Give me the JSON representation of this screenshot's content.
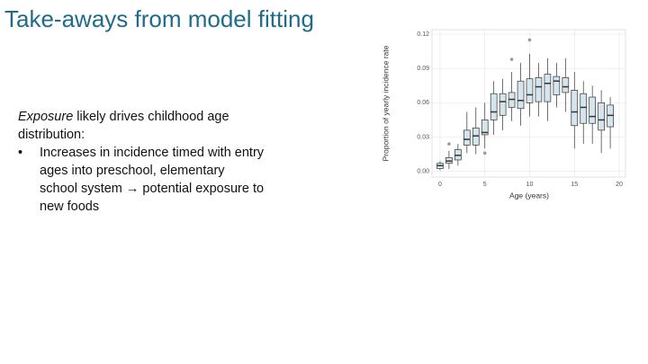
{
  "slide": {
    "title": "Take-aways from model fitting",
    "intro_emphasis": "Exposure",
    "intro_rest": " likely drives childhood age distribution:",
    "bullets": [
      "Increases in incidence timed with entry ages into preschool, elementary school system → potential exposure to new foods"
    ]
  },
  "chart_data": {
    "type": "box",
    "x_label": "Age (years)",
    "y_label": "Proportion of yearly incidence rate",
    "x": [
      0,
      1,
      2,
      3,
      4,
      5,
      6,
      7,
      8,
      9,
      10,
      11,
      12,
      13,
      14,
      15,
      16,
      17,
      18,
      19
    ],
    "min": [
      0.001,
      0.002,
      0.005,
      0.016,
      0.015,
      0.02,
      0.032,
      0.036,
      0.044,
      0.04,
      0.048,
      0.048,
      0.044,
      0.056,
      0.052,
      0.02,
      0.024,
      0.024,
      0.016,
      0.02
    ],
    "q1": [
      0.0025,
      0.007,
      0.01,
      0.023,
      0.023,
      0.032,
      0.045,
      0.049,
      0.056,
      0.055,
      0.06,
      0.061,
      0.061,
      0.067,
      0.069,
      0.04,
      0.042,
      0.042,
      0.036,
      0.039
    ],
    "median": [
      0.005,
      0.009,
      0.014,
      0.028,
      0.031,
      0.034,
      0.052,
      0.061,
      0.063,
      0.062,
      0.067,
      0.074,
      0.077,
      0.079,
      0.074,
      0.052,
      0.056,
      0.048,
      0.045,
      0.049
    ],
    "q3": [
      0.007,
      0.012,
      0.019,
      0.036,
      0.038,
      0.045,
      0.068,
      0.068,
      0.069,
      0.079,
      0.081,
      0.082,
      0.085,
      0.083,
      0.082,
      0.071,
      0.068,
      0.065,
      0.06,
      0.058
    ],
    "max": [
      0.009,
      0.018,
      0.024,
      0.052,
      0.056,
      0.06,
      0.079,
      0.081,
      0.087,
      0.095,
      0.103,
      0.095,
      0.099,
      0.095,
      0.099,
      0.087,
      0.079,
      0.075,
      0.071,
      0.065
    ],
    "outliers": {
      "x": [
        1,
        5,
        8,
        10
      ],
      "y": [
        0.024,
        0.016,
        0.098,
        0.115
      ]
    },
    "box_color": "#d4e5ee",
    "line_color": "#333333",
    "outlier_color": "#999999",
    "xlim": [
      -0.9,
      20.7
    ],
    "ylim": [
      -0.005,
      0.124
    ],
    "xticks": [
      0,
      5,
      10,
      15,
      20
    ],
    "yticks": [
      {
        "value": 0,
        "label": "0.00"
      },
      {
        "value": 0.03,
        "label": "0.03"
      },
      {
        "value": 0.06,
        "label": "0.06"
      },
      {
        "value": 0.09,
        "label": "0.09"
      },
      {
        "value": 0.12,
        "label": "0.12"
      }
    ],
    "grid": true
  }
}
